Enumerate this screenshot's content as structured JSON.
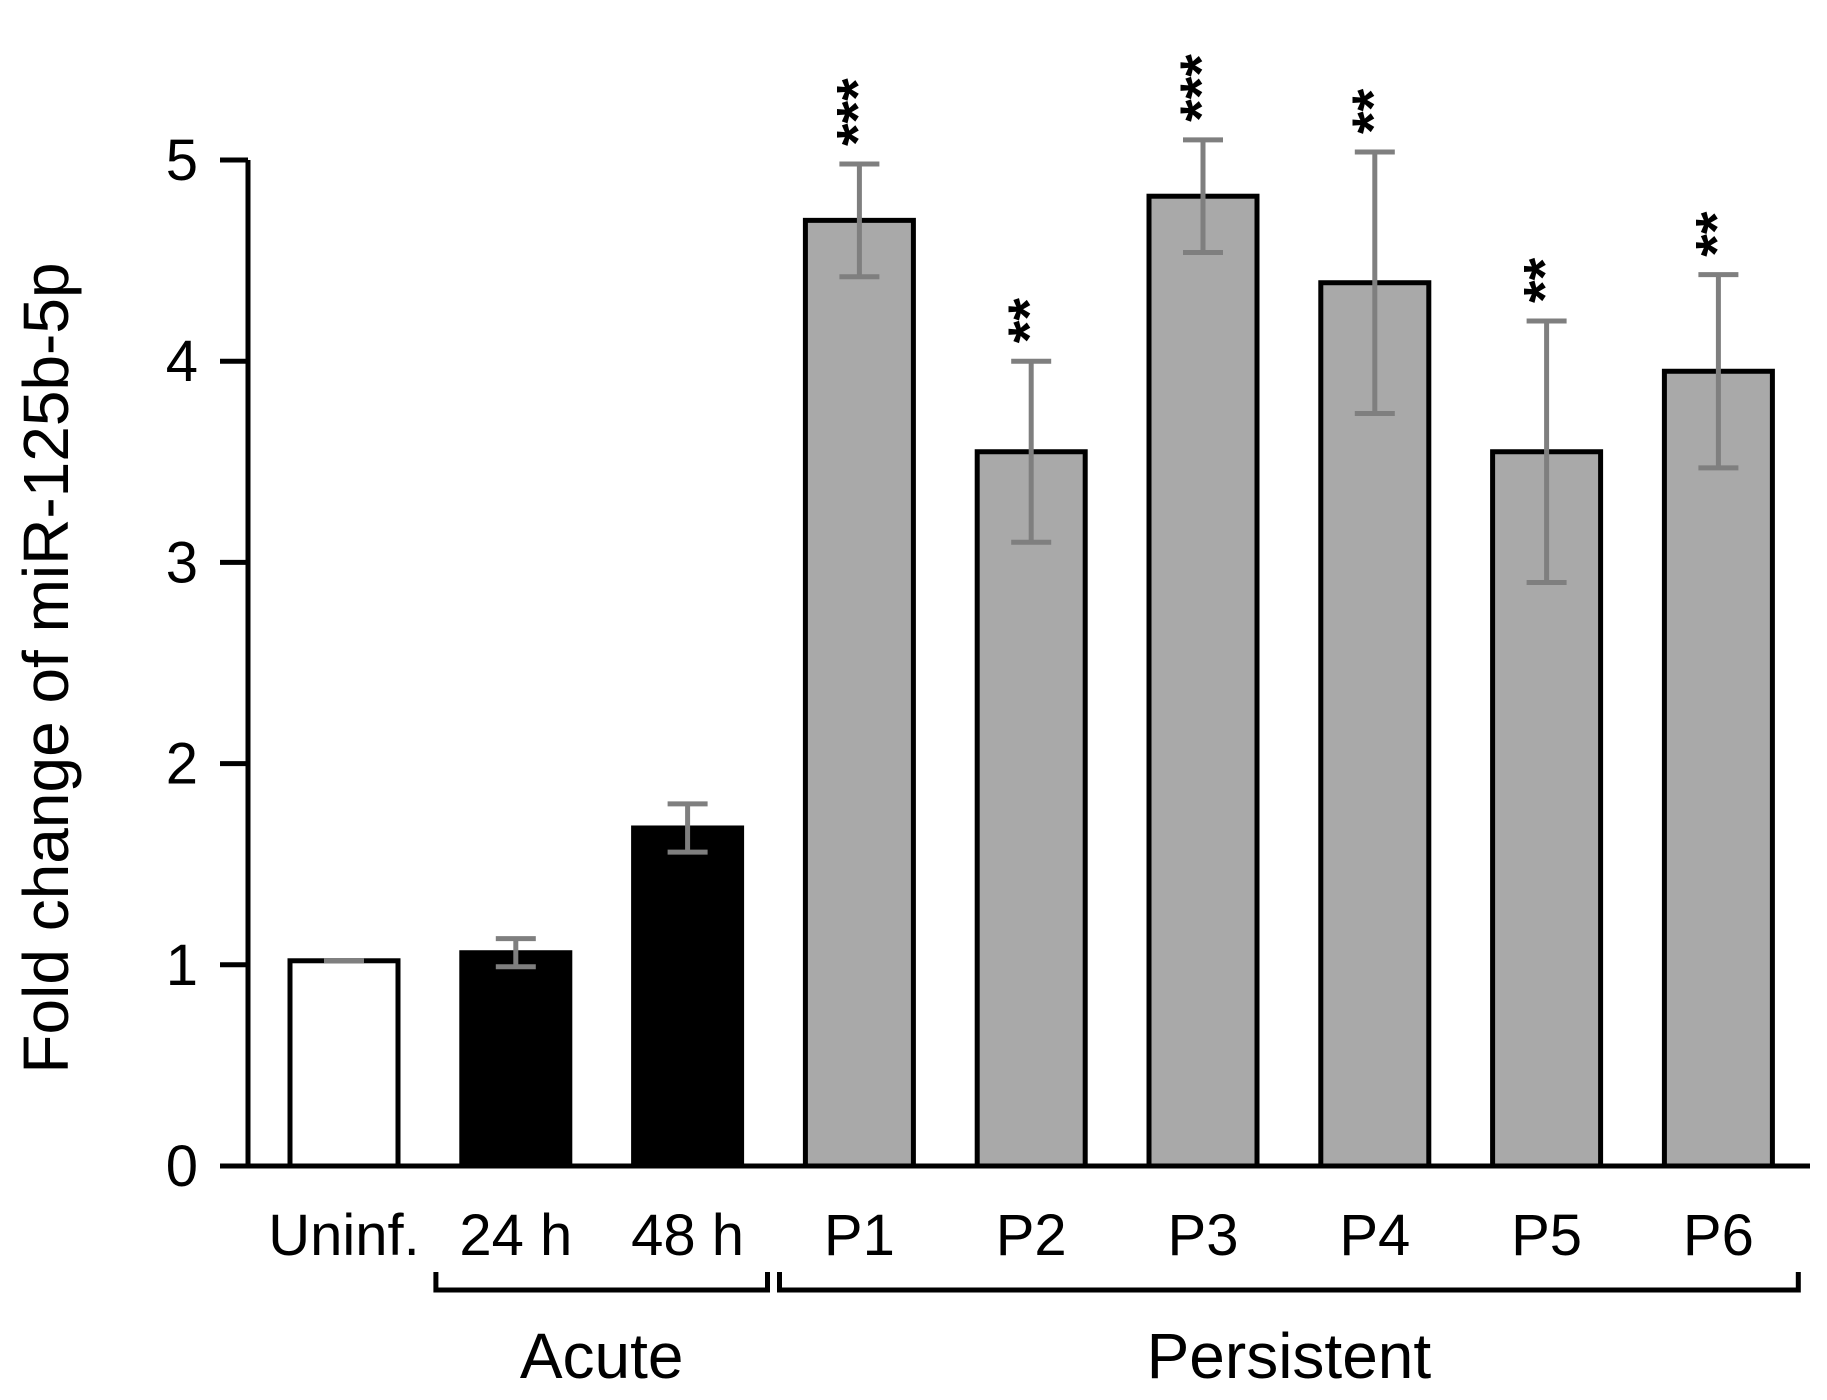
{
  "chart_data": {
    "type": "bar",
    "title": "",
    "xlabel": "",
    "ylabel": "Fold change of miR-125b-5p",
    "ylim": [
      0,
      5
    ],
    "yticks": [
      "0",
      "1",
      "2",
      "3",
      "4",
      "5"
    ],
    "grid": false,
    "legend": "none",
    "categories": [
      "Uninf.",
      "24 h",
      "48 h",
      "P1",
      "P2",
      "P3",
      "P4",
      "P5",
      "P6"
    ],
    "values": [
      1.02,
      1.06,
      1.68,
      4.7,
      3.55,
      4.82,
      4.39,
      3.55,
      3.95
    ],
    "errors": [
      0.0,
      0.07,
      0.12,
      0.28,
      0.45,
      0.28,
      0.65,
      0.65,
      0.48
    ],
    "fill_colors": [
      "#ffffff",
      "#000000",
      "#000000",
      "#a9a9a9",
      "#a9a9a9",
      "#a9a9a9",
      "#a9a9a9",
      "#a9a9a9",
      "#a9a9a9"
    ],
    "error_color": "#7f7f7f",
    "significance": [
      "",
      "",
      "",
      "***",
      "**",
      "***",
      "**",
      "**",
      "**"
    ],
    "groups": [
      {
        "label": "Acute",
        "start": 1,
        "end": 2
      },
      {
        "label": "Persistent",
        "start": 3,
        "end": 8
      }
    ]
  }
}
